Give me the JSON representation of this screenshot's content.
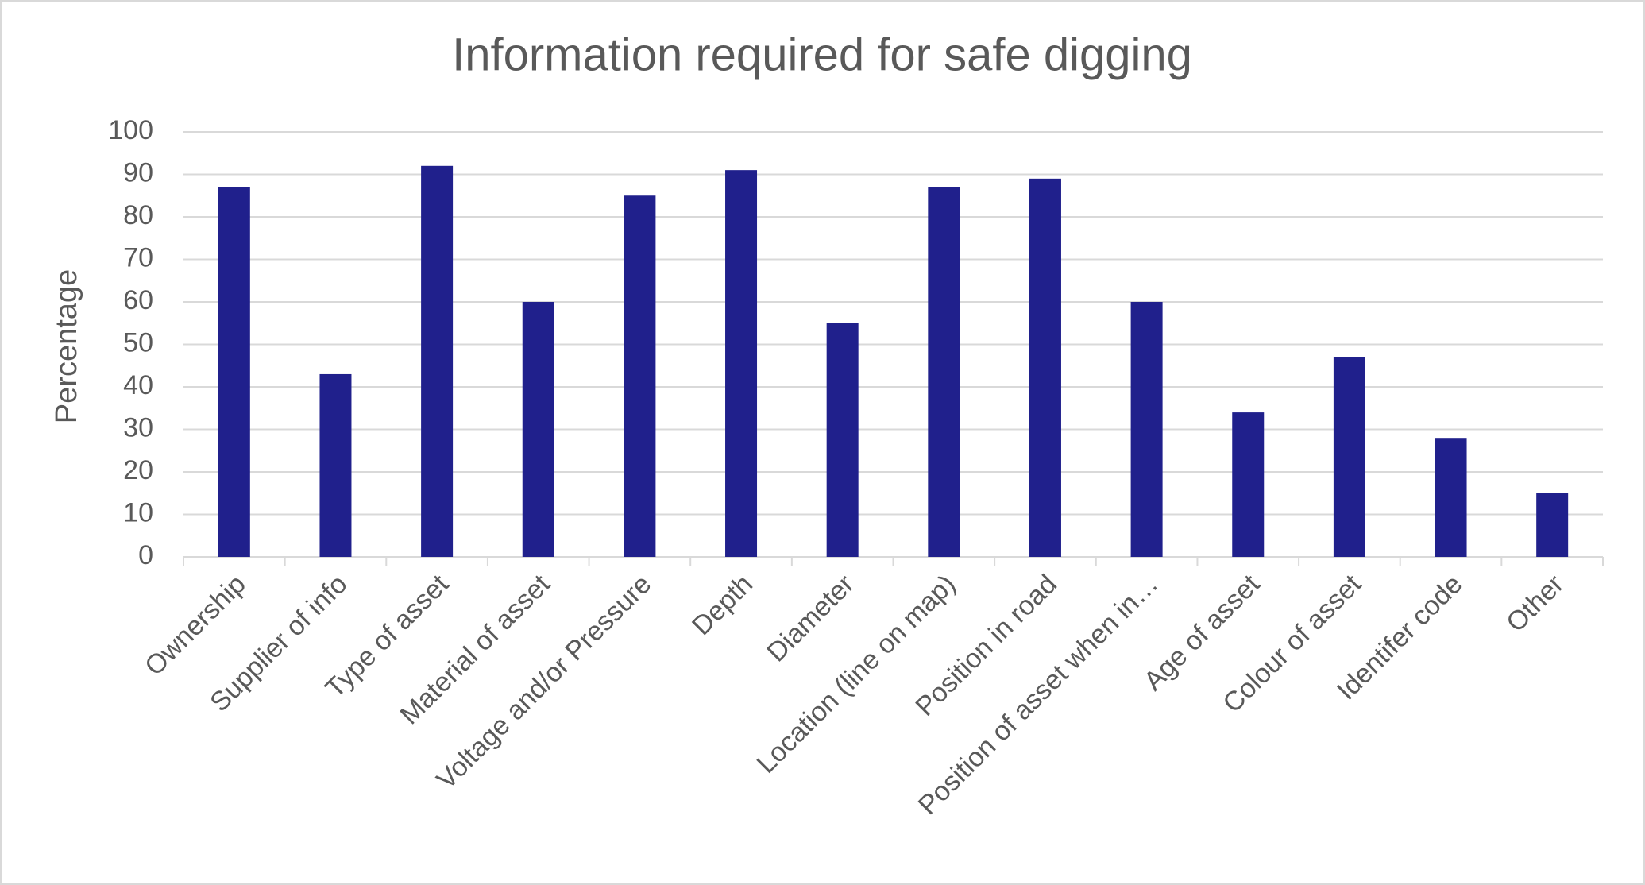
{
  "chart_data": {
    "type": "bar",
    "title": "Information required for safe digging",
    "y_label": "Percentage",
    "categories": [
      "Ownership",
      "Supplier of info",
      "Type of asset",
      "Material of asset",
      "Voltage and/or Pressure",
      "Depth",
      "Diameter",
      "Location (line on map)",
      "Position in road",
      "Position of asset when in…",
      "Age of asset",
      "Colour of asset",
      "Identifer code",
      "Other"
    ],
    "values": [
      87,
      43,
      92,
      60,
      85,
      91,
      55,
      87,
      89,
      60,
      34,
      47,
      28,
      15
    ],
    "color": "#20208c",
    "ylim": [
      0,
      100
    ],
    "yticks": [
      0,
      10,
      20,
      30,
      40,
      50,
      60,
      70,
      80,
      90,
      100
    ],
    "grid": true
  }
}
